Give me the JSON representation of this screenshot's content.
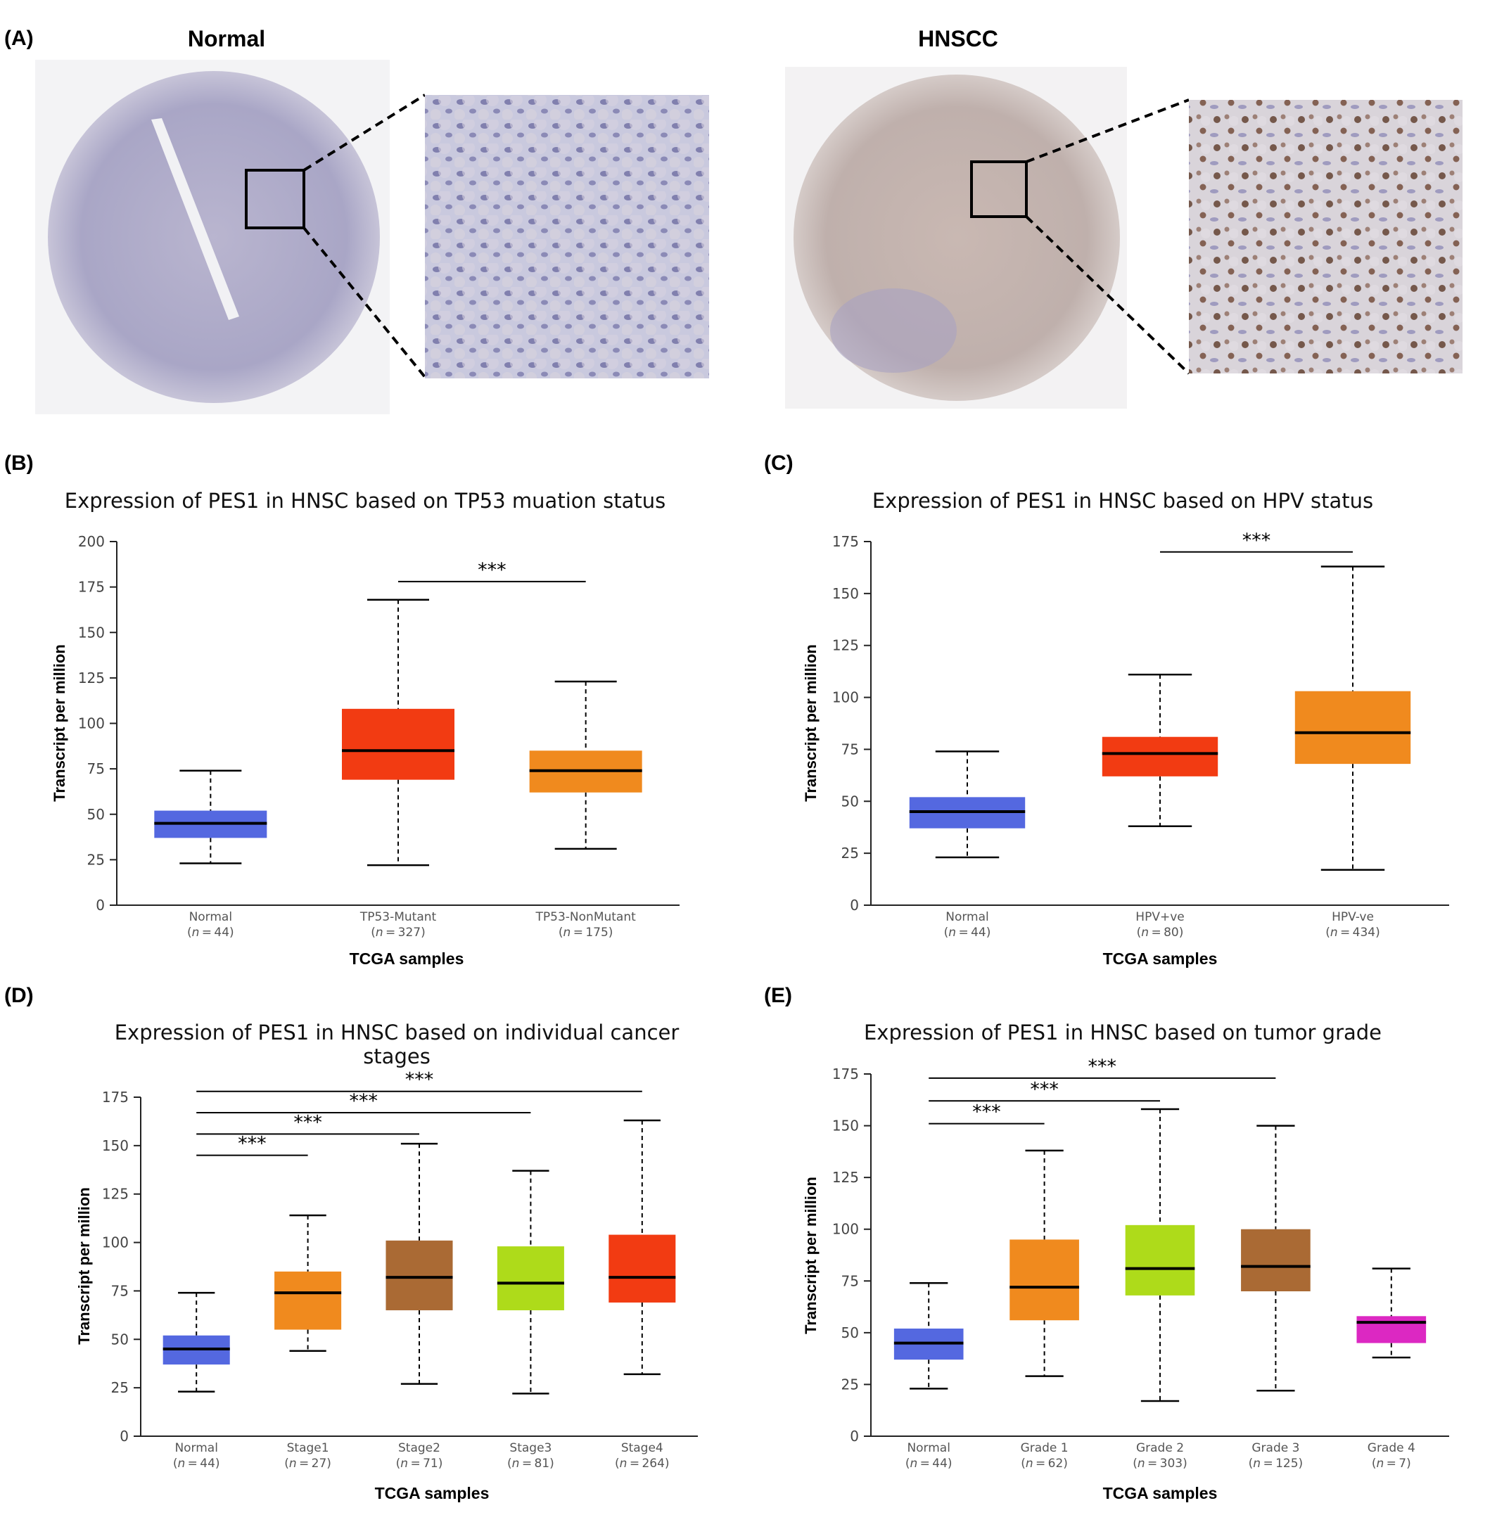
{
  "panel_a": {
    "label": "(A)",
    "left_title": "Normal",
    "right_title": "HNSCC"
  },
  "chart_data": [
    {
      "panel": "(B)",
      "type": "box",
      "title": "Expression of PES1 in HNSC based on TP53 muation status",
      "xlabel": "TCGA samples",
      "ylabel": "Transcript per million",
      "ylim": [
        0,
        200
      ],
      "yticks": [
        0,
        25,
        50,
        75,
        100,
        125,
        150,
        175,
        200
      ],
      "categories": [
        "Normal",
        "TP53-Mutant",
        "TP53-NonMutant"
      ],
      "n": [
        "44",
        "327",
        "175"
      ],
      "colors": [
        "#5468e0",
        "#f23b12",
        "#f08a1e"
      ],
      "boxes": [
        {
          "min": 23,
          "q1": 37,
          "median": 45,
          "q3": 52,
          "max": 74
        },
        {
          "min": 22,
          "q1": 69,
          "median": 85,
          "q3": 108,
          "max": 168
        },
        {
          "min": 31,
          "q1": 62,
          "median": 74,
          "q3": 85,
          "max": 123
        }
      ],
      "significance": [
        {
          "from": 1,
          "to": 2,
          "label": "***",
          "y": 178
        }
      ]
    },
    {
      "panel": "(C)",
      "type": "box",
      "title": "Expression of PES1 in HNSC based on HPV status",
      "xlabel": "TCGA samples",
      "ylabel": "Transcript per million",
      "ylim": [
        0,
        175
      ],
      "yticks": [
        0,
        25,
        50,
        75,
        100,
        125,
        150,
        175
      ],
      "categories": [
        "Normal",
        "HPV+ve",
        "HPV-ve"
      ],
      "n": [
        "44",
        "80",
        "434"
      ],
      "colors": [
        "#5468e0",
        "#f23b12",
        "#f08a1e"
      ],
      "boxes": [
        {
          "min": 23,
          "q1": 37,
          "median": 45,
          "q3": 52,
          "max": 74
        },
        {
          "min": 38,
          "q1": 62,
          "median": 73,
          "q3": 81,
          "max": 111
        },
        {
          "min": 17,
          "q1": 68,
          "median": 83,
          "q3": 103,
          "max": 163
        }
      ],
      "significance": [
        {
          "from": 1,
          "to": 2,
          "label": "***",
          "y": 170
        }
      ]
    },
    {
      "panel": "(D)",
      "type": "box",
      "title": "Expression of PES1 in HNSC based on individual cancer stages",
      "title_lines": [
        "Expression of PES1 in HNSC based on individual cancer",
        "stages"
      ],
      "xlabel": "TCGA samples",
      "ylabel": "Transcript per million",
      "ylim": [
        0,
        175
      ],
      "yticks": [
        0,
        25,
        50,
        75,
        100,
        125,
        150,
        175
      ],
      "categories": [
        "Normal",
        "Stage1",
        "Stage2",
        "Stage3",
        "Stage4"
      ],
      "n": [
        "44",
        "27",
        "71",
        "81",
        "264"
      ],
      "colors": [
        "#5468e0",
        "#f08a1e",
        "#aa6a34",
        "#aedb1a",
        "#f23b12"
      ],
      "boxes": [
        {
          "min": 23,
          "q1": 37,
          "median": 45,
          "q3": 52,
          "max": 74
        },
        {
          "min": 44,
          "q1": 55,
          "median": 74,
          "q3": 85,
          "max": 114
        },
        {
          "min": 27,
          "q1": 65,
          "median": 82,
          "q3": 101,
          "max": 151
        },
        {
          "min": 22,
          "q1": 65,
          "median": 79,
          "q3": 98,
          "max": 137
        },
        {
          "min": 32,
          "q1": 69,
          "median": 82,
          "q3": 104,
          "max": 163
        }
      ],
      "significance": [
        {
          "from": 0,
          "to": 1,
          "label": "***",
          "y": 145
        },
        {
          "from": 0,
          "to": 2,
          "label": "***",
          "y": 156
        },
        {
          "from": 0,
          "to": 3,
          "label": "***",
          "y": 167
        },
        {
          "from": 0,
          "to": 4,
          "label": "***",
          "y": 178
        }
      ]
    },
    {
      "panel": "(E)",
      "type": "box",
      "title": "Expression of PES1 in HNSC based on tumor grade",
      "xlabel": "TCGA samples",
      "ylabel": "Transcript per million",
      "ylim": [
        0,
        175
      ],
      "yticks": [
        0,
        25,
        50,
        75,
        100,
        125,
        150,
        175
      ],
      "categories": [
        "Normal",
        "Grade 1",
        "Grade 2",
        "Grade 3",
        "Grade 4"
      ],
      "n": [
        "44",
        "62",
        "303",
        "125",
        "7"
      ],
      "colors": [
        "#5468e0",
        "#f08a1e",
        "#aedb1a",
        "#aa6a34",
        "#dc28c2"
      ],
      "boxes": [
        {
          "min": 23,
          "q1": 37,
          "median": 45,
          "q3": 52,
          "max": 74
        },
        {
          "min": 29,
          "q1": 56,
          "median": 72,
          "q3": 95,
          "max": 138
        },
        {
          "min": 17,
          "q1": 68,
          "median": 81,
          "q3": 102,
          "max": 158
        },
        {
          "min": 22,
          "q1": 70,
          "median": 82,
          "q3": 100,
          "max": 150
        },
        {
          "min": 38,
          "q1": 45,
          "median": 55,
          "q3": 58,
          "max": 81
        }
      ],
      "significance": [
        {
          "from": 0,
          "to": 1,
          "label": "***",
          "y": 151
        },
        {
          "from": 0,
          "to": 2,
          "label": "***",
          "y": 162
        },
        {
          "from": 0,
          "to": 3,
          "label": "***",
          "y": 173
        }
      ]
    }
  ]
}
